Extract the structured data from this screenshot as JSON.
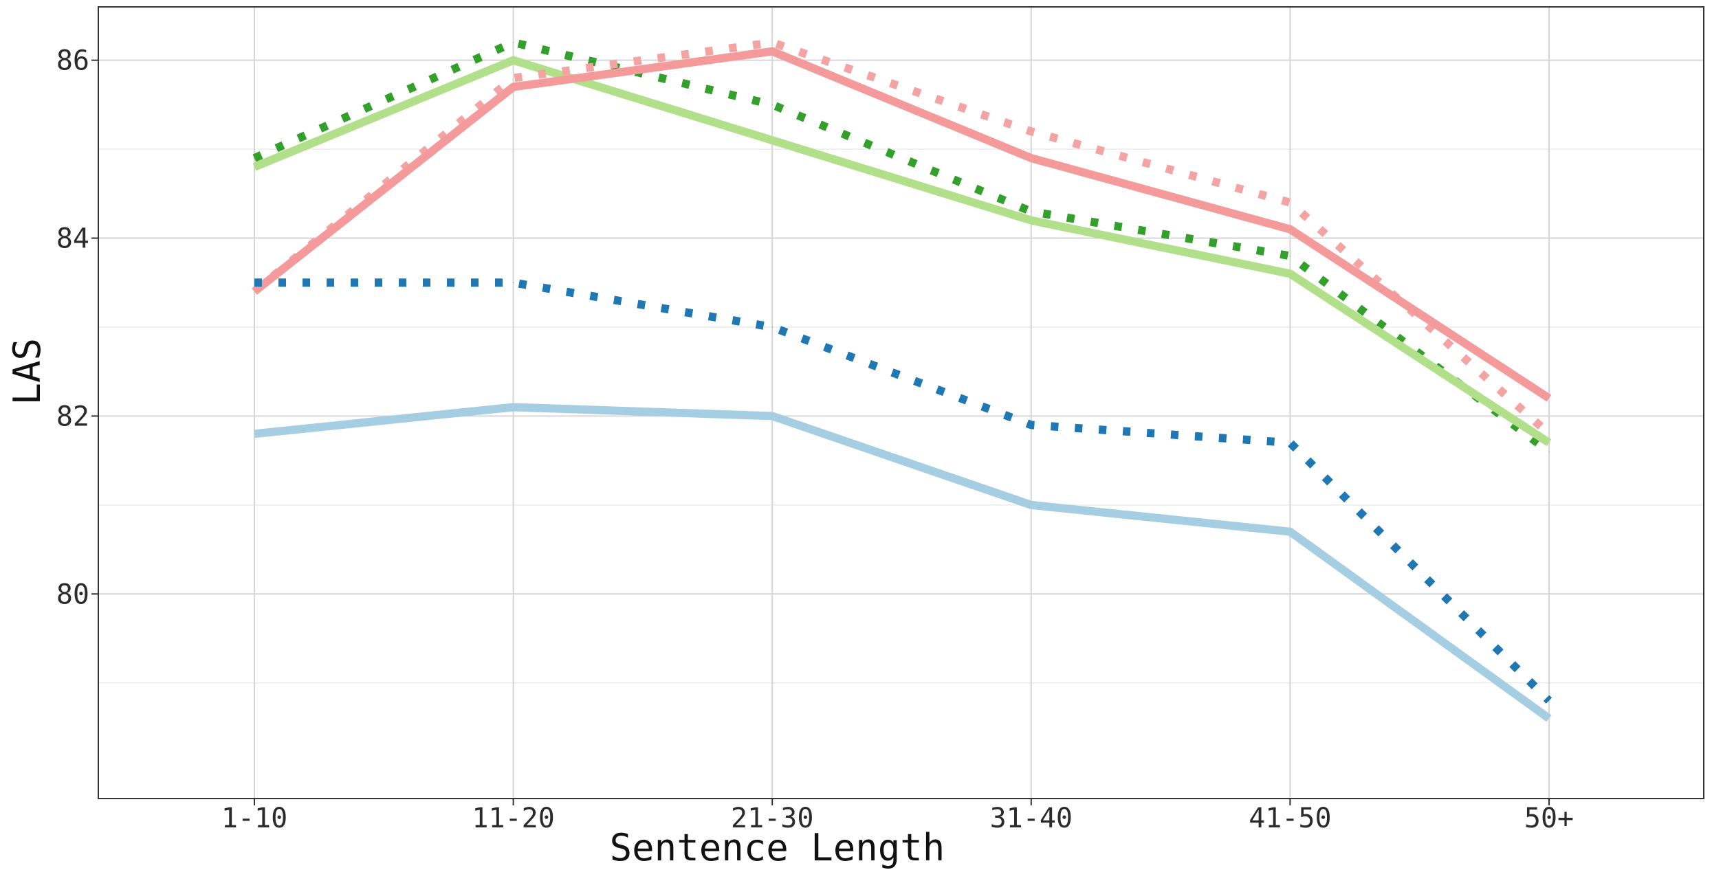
{
  "chart_data": {
    "type": "line",
    "title": "",
    "xlabel": "Sentence Length",
    "ylabel": "LAS",
    "categories": [
      "1-10",
      "11-20",
      "21-30",
      "31-40",
      "41-50",
      "50+"
    ],
    "ylim": [
      77.7,
      86.6
    ],
    "y_major_ticks": [
      80,
      82,
      84,
      86
    ],
    "y_minor_ticks": [
      79,
      81,
      83,
      85
    ],
    "grid": true,
    "legend": "none",
    "series": [
      {
        "values": [
          84.9,
          86.2,
          85.5,
          84.3,
          83.8,
          81.6
        ],
        "color": "#33a02c",
        "style": "dotted"
      },
      {
        "values": [
          84.8,
          86.0,
          85.1,
          84.2,
          83.6,
          81.7
        ],
        "color": "#b2df8a",
        "style": "solid"
      },
      {
        "values": [
          83.4,
          85.8,
          86.2,
          85.2,
          84.4,
          81.8
        ],
        "color": "#f4a3a3",
        "style": "dotted"
      },
      {
        "values": [
          83.4,
          85.7,
          86.1,
          84.9,
          84.1,
          82.2
        ],
        "color": "#f59a9a",
        "style": "solid"
      },
      {
        "values": [
          83.5,
          83.5,
          83.0,
          81.9,
          81.7,
          78.8
        ],
        "color": "#1f78b4",
        "style": "dotted"
      },
      {
        "values": [
          81.8,
          82.1,
          82.0,
          81.0,
          80.7,
          78.6
        ],
        "color": "#a6cee3",
        "style": "solid"
      }
    ]
  }
}
